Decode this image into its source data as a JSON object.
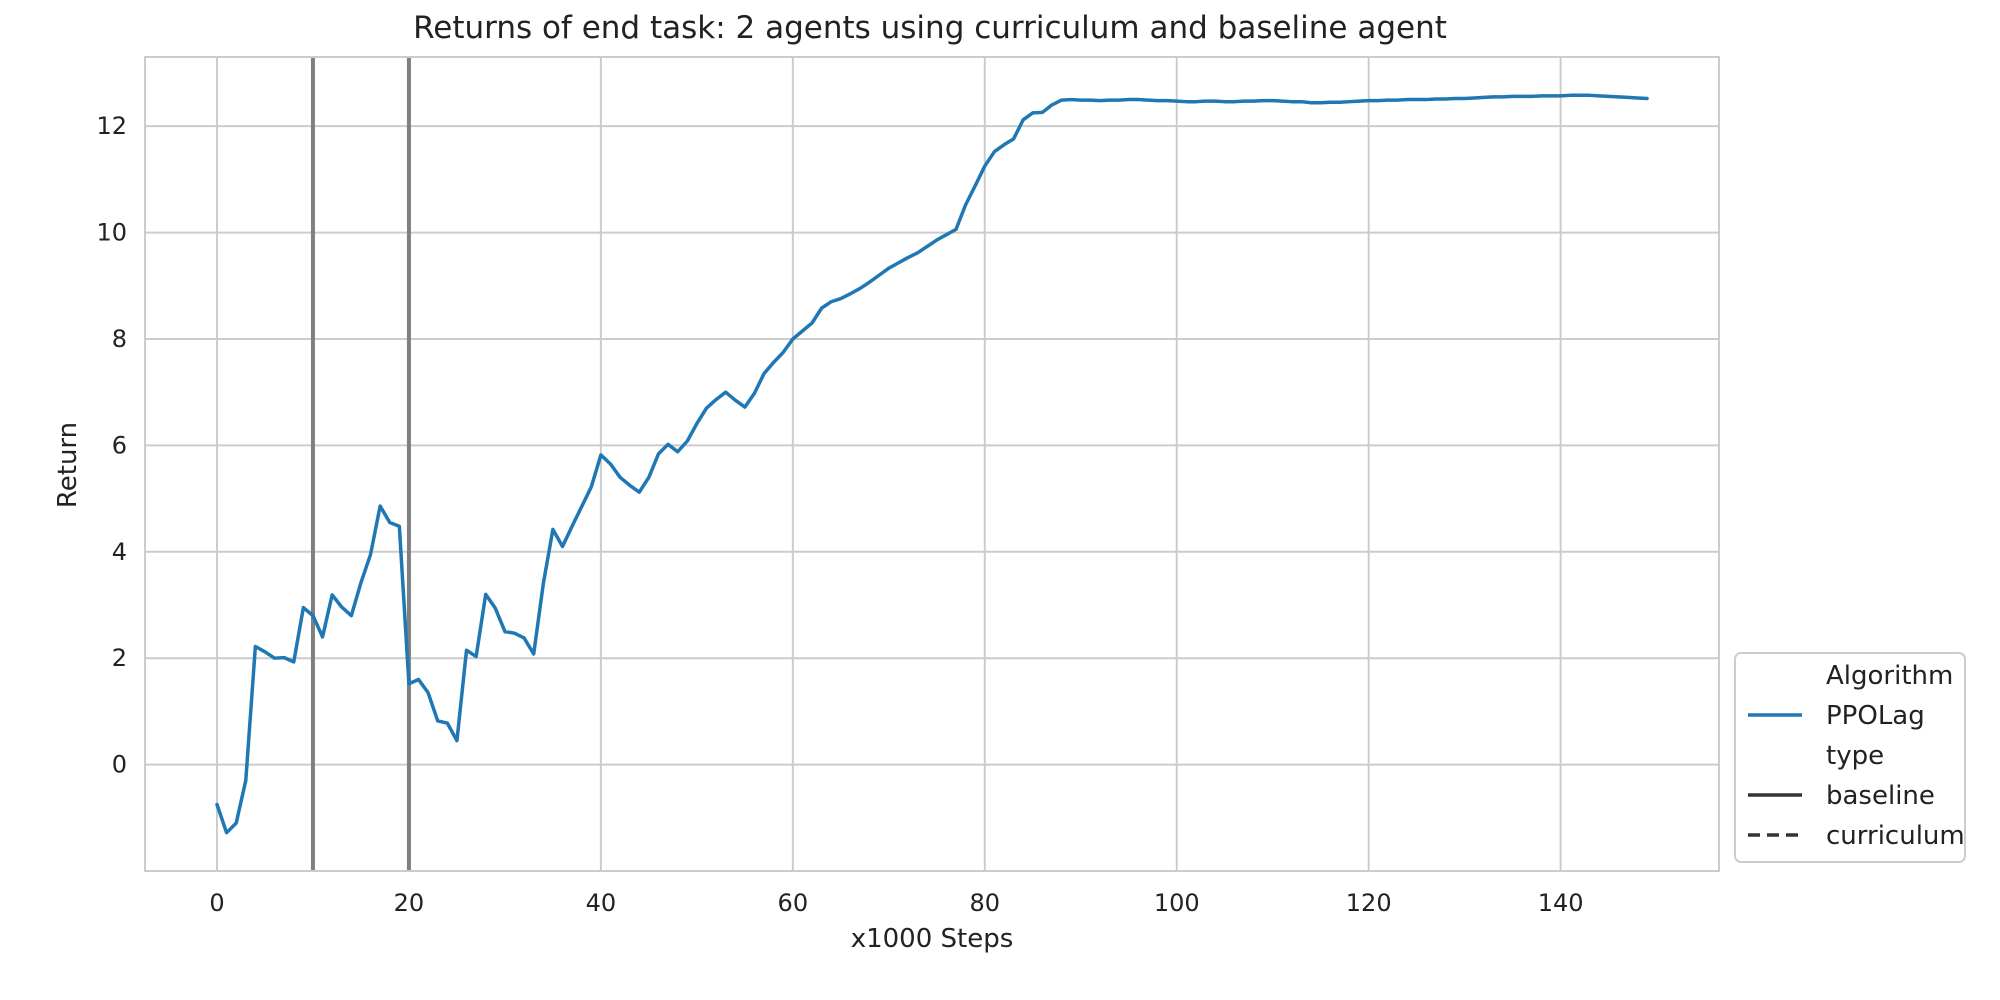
{
  "chart_data": {
    "type": "line",
    "title": "Returns of end task: 2 agents using curriculum and baseline agent",
    "xlabel": "x1000 Steps",
    "ylabel": "Return",
    "xlim": [
      -7.5,
      156.5
    ],
    "ylim": [
      -2.0,
      13.3
    ],
    "xticks": [
      0,
      20,
      40,
      60,
      80,
      100,
      120,
      140
    ],
    "yticks": [
      0,
      2,
      4,
      6,
      8,
      10,
      12
    ],
    "grid": true,
    "vlines": [
      10,
      20
    ],
    "vline_color": "#808080",
    "legend": {
      "placement": "lower-right outside",
      "entries": [
        {
          "label": "Algorithm",
          "style": "header"
        },
        {
          "label": "PPOLag",
          "style": "solid",
          "color": "#1f77b4"
        },
        {
          "label": "type",
          "style": "header"
        },
        {
          "label": "baseline",
          "style": "solid",
          "color": "#333333"
        },
        {
          "label": "curriculum",
          "style": "dashed",
          "color": "#333333"
        }
      ]
    },
    "series": [
      {
        "name": "PPOLag",
        "style": "baseline",
        "color": "#1f77b4",
        "x": [
          0,
          1,
          2,
          3,
          4,
          5,
          6,
          7,
          8,
          9,
          10,
          11,
          12,
          13,
          14,
          15,
          16,
          17,
          18,
          19,
          20,
          21,
          22,
          23,
          24,
          25,
          26,
          27,
          28,
          29,
          30,
          31,
          32,
          33,
          34,
          35,
          36,
          37,
          38,
          39,
          40,
          41,
          42,
          43,
          44,
          45,
          46,
          47,
          48,
          49,
          50,
          51,
          52,
          53,
          54,
          55,
          56,
          57,
          58,
          59,
          60,
          61,
          62,
          63,
          64,
          65,
          66,
          67,
          68,
          69,
          70,
          71,
          72,
          73,
          74,
          75,
          76,
          77,
          78,
          79,
          80,
          81,
          82,
          83,
          84,
          85,
          86,
          87,
          88,
          89,
          90,
          91,
          92,
          93,
          94,
          95,
          96,
          97,
          98,
          99,
          100,
          101,
          102,
          103,
          104,
          105,
          106,
          107,
          108,
          109,
          110,
          111,
          112,
          113,
          114,
          115,
          116,
          117,
          118,
          119,
          120,
          121,
          122,
          123,
          124,
          125,
          126,
          127,
          128,
          129,
          130,
          131,
          132,
          133,
          134,
          135,
          136,
          137,
          138,
          139,
          140,
          141,
          142,
          143,
          144,
          145,
          146,
          147,
          148,
          149
        ],
        "y": [
          -0.75,
          -1.28,
          -1.1,
          -0.3,
          2.22,
          2.12,
          2.0,
          2.01,
          1.93,
          2.95,
          2.8,
          2.4,
          3.19,
          2.96,
          2.8,
          3.42,
          3.95,
          4.86,
          4.55,
          4.48,
          1.52,
          1.6,
          1.35,
          0.82,
          0.78,
          0.45,
          2.15,
          2.03,
          3.2,
          2.94,
          2.5,
          2.47,
          2.38,
          2.08,
          3.4,
          4.42,
          4.1,
          4.48,
          4.85,
          5.22,
          5.82,
          5.65,
          5.4,
          5.25,
          5.12,
          5.4,
          5.84,
          6.02,
          5.88,
          6.08,
          6.41,
          6.7,
          6.86,
          7.0,
          6.85,
          6.72,
          6.98,
          7.35,
          7.56,
          7.75,
          8.0,
          8.15,
          8.3,
          8.58,
          8.7,
          8.76,
          8.85,
          8.95,
          9.07,
          9.2,
          9.33,
          9.43,
          9.53,
          9.62,
          9.74,
          9.86,
          9.96,
          10.06,
          10.52,
          10.88,
          11.25,
          11.52,
          11.65,
          11.76,
          12.12,
          12.25,
          12.26,
          12.4,
          12.49,
          12.5,
          12.49,
          12.49,
          12.48,
          12.49,
          12.49,
          12.5,
          12.5,
          12.49,
          12.48,
          12.48,
          12.47,
          12.46,
          12.46,
          12.47,
          12.47,
          12.46,
          12.46,
          12.47,
          12.47,
          12.48,
          12.48,
          12.47,
          12.46,
          12.46,
          12.44,
          12.44,
          12.45,
          12.45,
          12.46,
          12.47,
          12.48,
          12.48,
          12.49,
          12.49,
          12.5,
          12.5,
          12.5,
          12.51,
          12.51,
          12.52,
          12.52,
          12.53,
          12.54,
          12.55,
          12.55,
          12.56,
          12.56,
          12.56,
          12.57,
          12.57,
          12.57,
          12.58,
          12.58,
          12.58,
          12.57,
          12.56,
          12.55,
          12.54,
          12.53,
          12.52
        ]
      }
    ]
  }
}
